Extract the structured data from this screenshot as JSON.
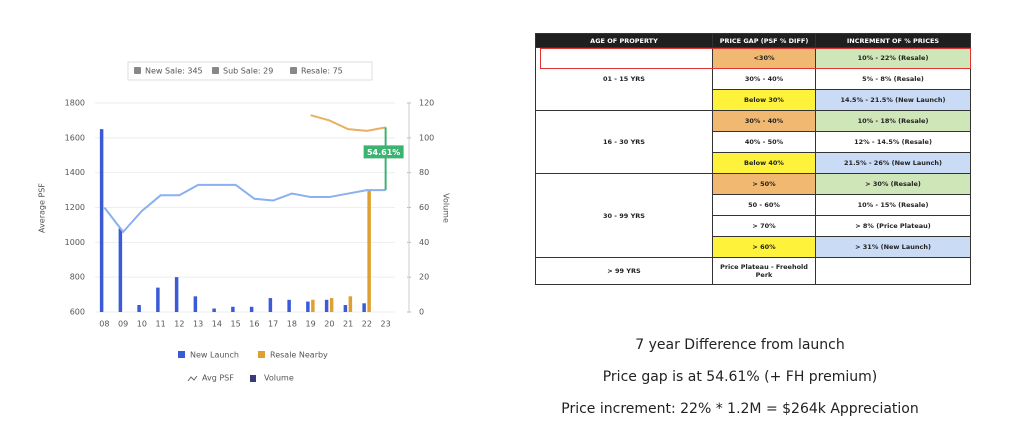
{
  "chart_data": {
    "type": "bar",
    "filters": [
      "New Sale: 345",
      "Sub Sale: 29",
      "Resale: 75"
    ],
    "ylabel": "Average PSF",
    "y2label": "Volume",
    "categories": [
      "08",
      "09",
      "10",
      "11",
      "12",
      "13",
      "14",
      "15",
      "16",
      "17",
      "18",
      "19",
      "20",
      "21",
      "22",
      "23"
    ],
    "series": [
      {
        "name": "New Launch",
        "type": "bar",
        "axis": "y2",
        "color": "#3b5bd6",
        "values": [
          105,
          48,
          4,
          14,
          20,
          9,
          2,
          3,
          3,
          8,
          7,
          6,
          7,
          4,
          5,
          0
        ]
      },
      {
        "name": "Resale Nearby",
        "type": "bar",
        "axis": "y2",
        "color": "#e0a030",
        "values": [
          null,
          null,
          null,
          null,
          null,
          null,
          null,
          null,
          null,
          null,
          null,
          7,
          8,
          9,
          70,
          null
        ]
      },
      {
        "name": "Avg PSF",
        "type": "line",
        "color": "#8ab0f0",
        "values": [
          1200,
          1060,
          1180,
          1270,
          1270,
          1330,
          1330,
          1330,
          1250,
          1240,
          1280,
          1260,
          1260,
          1280,
          1300,
          1300
        ]
      },
      {
        "type": "line",
        "color": "#e8b060",
        "values": [
          null,
          null,
          null,
          null,
          null,
          null,
          null,
          null,
          null,
          null,
          null,
          1730,
          1700,
          1650,
          1640,
          1660
        ]
      }
    ],
    "legend_extra": [
      "Avg PSF",
      "Volume"
    ],
    "annotation": {
      "text": "54.61%",
      "color": "#3cb371"
    },
    "ylim": [
      600,
      1800
    ],
    "yticks": [
      600,
      800,
      1000,
      1200,
      1400,
      1600,
      1800
    ],
    "y2lim": [
      0,
      120
    ],
    "y2ticks": [
      0,
      20,
      40,
      60,
      80,
      100,
      120
    ],
    "grid": true
  },
  "table": {
    "header": [
      "AGE OF PROPERTY",
      "PRICE GAP (PSF % DIFF)",
      "INCREMENT OF % PRICES"
    ],
    "groups": [
      {
        "age": "01 - 15 YRS",
        "rows": [
          {
            "gap": "<30%",
            "gap_fill": "#f0b870",
            "inc": "10% - 22% (Resale)",
            "inc_fill": "#cfe6b8",
            "highlight": true
          },
          {
            "gap": "30% - 40%",
            "gap_fill": "#ffffff",
            "inc": "5% - 8% (Resale)",
            "inc_fill": "#ffffff"
          },
          {
            "gap": "Below 30%",
            "gap_fill": "#fff23a",
            "inc": "14.5% - 21.5% (New Launch)",
            "inc_fill": "#c9dbf5"
          }
        ]
      },
      {
        "age": "16 - 30 YRS",
        "rows": [
          {
            "gap": "30% - 40%",
            "gap_fill": "#f0b870",
            "inc": "10% - 18% (Resale)",
            "inc_fill": "#cfe6b8"
          },
          {
            "gap": "40% - 50%",
            "gap_fill": "#ffffff",
            "inc": "12% - 14.5% (Resale)",
            "inc_fill": "#ffffff"
          },
          {
            "gap": "Below 40%",
            "gap_fill": "#fff23a",
            "inc": "21.5% - 26% (New Launch)",
            "inc_fill": "#c9dbf5"
          }
        ]
      },
      {
        "age": "30 - 99 YRS",
        "rows": [
          {
            "gap": "> 50%",
            "gap_fill": "#f0b870",
            "inc": "> 30% (Resale)",
            "inc_fill": "#cfe6b8"
          },
          {
            "gap": "50 - 60%",
            "gap_fill": "#ffffff",
            "inc": "10% - 15% (Resale)",
            "inc_fill": "#ffffff"
          },
          {
            "gap": "> 70%",
            "gap_fill": "#ffffff",
            "inc": "> 8% (Price Plateau)",
            "inc_fill": "#ffffff"
          },
          {
            "gap": "> 60%",
            "gap_fill": "#fff23a",
            "inc": "> 31% (New Launch)",
            "inc_fill": "#c9dbf5"
          }
        ]
      },
      {
        "age": "> 99 YRS",
        "rows": [
          {
            "gap": "Price Plateau - Freehold Perk",
            "gap_fill": "#ffffff",
            "inc_fill": "#ffffff"
          }
        ]
      }
    ]
  },
  "captions": [
    "7 year Difference from launch",
    "Price gap is at 54.61% (+ FH premium)",
    "Price increment: 22% * 1.2M = $264k Appreciation"
  ]
}
